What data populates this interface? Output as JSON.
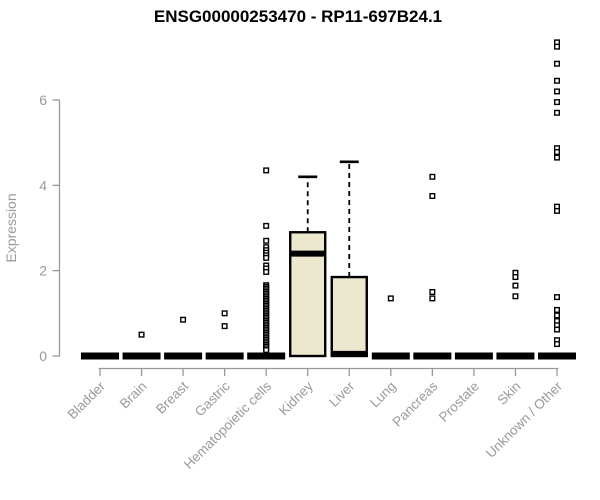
{
  "chart_data": {
    "type": "box",
    "title": "ENSG00000253470 - RP11-697B24.1",
    "xlabel": "",
    "ylabel": "Expression",
    "ylim": [
      0,
      7.5
    ],
    "yticks": [
      0,
      2,
      4,
      6
    ],
    "grid": false,
    "legend": null,
    "categories": [
      "Bladder",
      "Brain",
      "Breast",
      "Gastric",
      "Hematopoietic cells",
      "Kidney",
      "Liver",
      "Lung",
      "Pancreas",
      "Prostate",
      "Skin",
      "Unknown / Other"
    ],
    "boxes": [
      {
        "category": "Bladder",
        "q1": 0,
        "median": 0,
        "q3": 0,
        "whisker_low": 0,
        "whisker_high": 0,
        "outliers": []
      },
      {
        "category": "Brain",
        "q1": 0,
        "median": 0,
        "q3": 0,
        "whisker_low": 0,
        "whisker_high": 0,
        "outliers": [
          0.5
        ]
      },
      {
        "category": "Breast",
        "q1": 0,
        "median": 0,
        "q3": 0,
        "whisker_low": 0,
        "whisker_high": 0,
        "outliers": [
          0.85
        ]
      },
      {
        "category": "Gastric",
        "q1": 0,
        "median": 0,
        "q3": 0,
        "whisker_low": 0,
        "whisker_high": 0,
        "outliers": [
          1.0,
          0.7
        ]
      },
      {
        "category": "Hematopoietic cells",
        "q1": 0,
        "median": 0,
        "q3": 0,
        "whisker_low": 0,
        "whisker_high": 0,
        "outliers": [
          4.35,
          3.05,
          2.7,
          2.55,
          2.48,
          2.42,
          2.36,
          2.3,
          2.12,
          2.05,
          1.97,
          1.66,
          1.62,
          1.58,
          1.54,
          1.5,
          1.46,
          1.42,
          1.38,
          1.34,
          1.3,
          1.26,
          1.22,
          1.18,
          1.14,
          1.1,
          1.06,
          1.02,
          0.98,
          0.94,
          0.9,
          0.86,
          0.82,
          0.78,
          0.74,
          0.7,
          0.66,
          0.62,
          0.58,
          0.54,
          0.5,
          0.46,
          0.42,
          0.38,
          0.34,
          0.3,
          0.26,
          0.22,
          0.18,
          0.14
        ]
      },
      {
        "category": "Kidney",
        "q1": 0,
        "median": 2.4,
        "q3": 2.9,
        "whisker_low": 0,
        "whisker_high": 4.2,
        "outliers": []
      },
      {
        "category": "Liver",
        "q1": 0,
        "median": 0.05,
        "q3": 1.85,
        "whisker_low": 0,
        "whisker_high": 4.55,
        "outliers": []
      },
      {
        "category": "Lung",
        "q1": 0,
        "median": 0,
        "q3": 0,
        "whisker_low": 0,
        "whisker_high": 0,
        "outliers": [
          1.35
        ]
      },
      {
        "category": "Pancreas",
        "q1": 0,
        "median": 0,
        "q3": 0,
        "whisker_low": 0,
        "whisker_high": 0,
        "outliers": [
          4.2,
          3.75,
          1.5,
          1.35
        ]
      },
      {
        "category": "Prostate",
        "q1": 0,
        "median": 0,
        "q3": 0,
        "whisker_low": 0,
        "whisker_high": 0,
        "outliers": []
      },
      {
        "category": "Skin",
        "q1": 0,
        "median": 0,
        "q3": 0,
        "whisker_low": 0,
        "whisker_high": 0,
        "outliers": [
          1.95,
          1.85,
          1.65,
          1.4
        ]
      },
      {
        "category": "Unknown / Other",
        "q1": 0,
        "median": 0,
        "q3": 0,
        "whisker_low": 0,
        "whisker_high": 0,
        "outliers": [
          7.35,
          7.25,
          6.85,
          6.45,
          6.2,
          5.95,
          5.7,
          4.87,
          4.78,
          4.65,
          3.5,
          3.4,
          1.38,
          1.08,
          0.95,
          0.82,
          0.72,
          0.62,
          0.37,
          0.28
        ]
      }
    ],
    "colors": {
      "box_fill": "#ece8cd",
      "box_stroke": "#000000",
      "median": "#000000",
      "outlier_stroke": "#000000",
      "axis": "#999999",
      "tick_text": "#9a9a9a",
      "title_text": "#000000",
      "background": "#ffffff"
    }
  }
}
